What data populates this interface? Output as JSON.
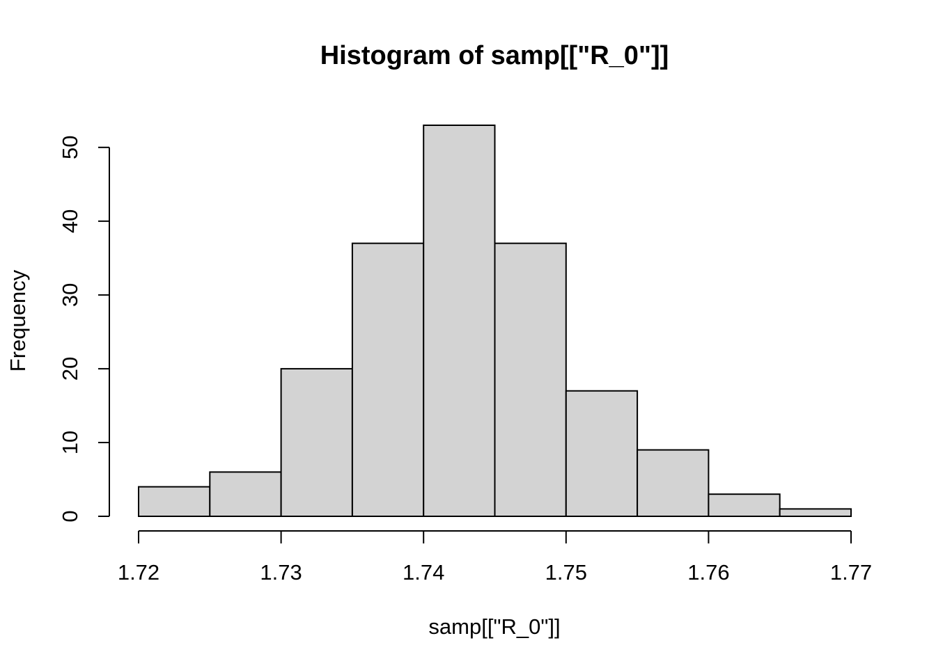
{
  "chart_data": {
    "type": "bar",
    "histogram": true,
    "title": "Histogram of samp[[\"R_0\"]]",
    "xlabel": "samp[[\"R_0\"]]",
    "ylabel": "Frequency",
    "bin_edges": [
      1.72,
      1.725,
      1.73,
      1.735,
      1.74,
      1.745,
      1.75,
      1.755,
      1.76,
      1.765,
      1.77
    ],
    "values": [
      4,
      6,
      20,
      37,
      53,
      37,
      17,
      9,
      3,
      1
    ],
    "xlim": [
      1.72,
      1.77
    ],
    "ylim": [
      0,
      53
    ],
    "x_ticks": [
      1.72,
      1.73,
      1.74,
      1.75,
      1.76,
      1.77
    ],
    "x_tick_labels": [
      "1.72",
      "1.73",
      "1.74",
      "1.75",
      "1.76",
      "1.77"
    ],
    "y_ticks": [
      0,
      10,
      20,
      30,
      40,
      50
    ],
    "y_tick_labels": [
      "0",
      "10",
      "20",
      "30",
      "40",
      "50"
    ],
    "bar_color": "#d3d3d3",
    "edge_color": "#000000",
    "grid": false,
    "legend": "none"
  }
}
